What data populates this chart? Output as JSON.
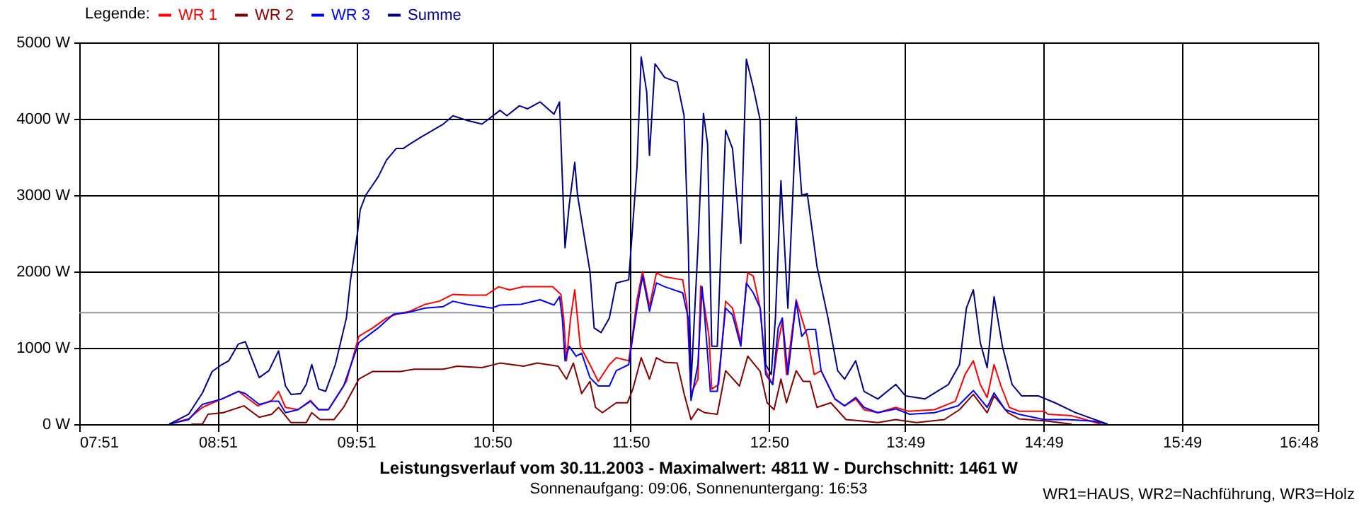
{
  "chart_data": {
    "type": "line",
    "title": "Leistungsverlauf vom 30.11.2003 - Maximalwert: 4811 W - Durchschnitt: 1461 W",
    "subtitle": "Sonnenaufgang: 09:06, Sonnenuntergang: 16:53",
    "annotations": [
      "WR1=HAUS, WR2=Nachführung, WR3=Holz"
    ],
    "legend_title": "Legende:",
    "legend": "top left",
    "grid": true,
    "xlim": [
      7.85,
      16.8
    ],
    "xticks": [
      {
        "value": 7.85,
        "label": "07:51"
      },
      {
        "value": 8.85,
        "label": "08:51"
      },
      {
        "value": 9.85,
        "label": "09:51"
      },
      {
        "value": 10.8333,
        "label": "10:50"
      },
      {
        "value": 11.8333,
        "label": "11:50"
      },
      {
        "value": 12.8333,
        "label": "12:50"
      },
      {
        "value": 13.8167,
        "label": "13:49"
      },
      {
        "value": 14.8167,
        "label": "14:49"
      },
      {
        "value": 15.8167,
        "label": "15:49"
      },
      {
        "value": 16.8,
        "label": "16:48"
      }
    ],
    "ylim": [
      0,
      5000
    ],
    "yticks": [
      {
        "value": 0,
        "label": "0 W"
      },
      {
        "value": 1000,
        "label": "1000 W"
      },
      {
        "value": 2000,
        "label": "2000 W"
      },
      {
        "value": 3000,
        "label": "3000 W"
      },
      {
        "value": 4000,
        "label": "4000 W"
      },
      {
        "value": 5000,
        "label": "5000 W"
      }
    ],
    "ref_lines": [
      {
        "axis": "y",
        "value": 1461,
        "color": "#999999"
      }
    ],
    "series": [
      {
        "name": "WR 1",
        "color": "#ff0000",
        "x": [
          8.5,
          8.64,
          8.74,
          8.88,
          9.0,
          9.14,
          9.24,
          9.29,
          9.34,
          9.43,
          9.52,
          9.58,
          9.65,
          9.78,
          9.87,
          9.97,
          10.07,
          10.14,
          10.24,
          10.35,
          10.45,
          10.55,
          10.67,
          10.79,
          10.88,
          10.96,
          11.06,
          11.27,
          11.33,
          11.35,
          11.37,
          11.4,
          11.43,
          11.47,
          11.54,
          11.6,
          11.68,
          11.73,
          11.82,
          11.85,
          11.88,
          11.92,
          11.97,
          12.02,
          12.08,
          12.21,
          12.24,
          12.27,
          12.32,
          12.34,
          12.36,
          12.4,
          12.42,
          12.47,
          12.52,
          12.57,
          12.63,
          12.68,
          12.72,
          12.77,
          12.81,
          12.86,
          12.9,
          12.93,
          12.96,
          13.03,
          13.08,
          13.11,
          13.16,
          13.21,
          13.31,
          13.38,
          13.46,
          13.52,
          13.62,
          13.75,
          13.84,
          14.03,
          14.18,
          14.25,
          14.31,
          14.36,
          14.41,
          14.46,
          14.51,
          14.57,
          14.64,
          14.82,
          14.85,
          15.02,
          15.12,
          15.23
        ],
        "values": [
          0,
          70,
          220,
          330,
          430,
          240,
          310,
          430,
          220,
          190,
          310,
          190,
          190,
          560,
          1150,
          1260,
          1390,
          1440,
          1480,
          1570,
          1610,
          1700,
          1690,
          1690,
          1800,
          1760,
          1800,
          1800,
          1700,
          1390,
          830,
          1390,
          1760,
          1020,
          780,
          560,
          780,
          870,
          830,
          1200,
          1630,
          2000,
          1540,
          1980,
          1930,
          1890,
          1570,
          400,
          590,
          1810,
          1630,
          1150,
          460,
          520,
          1610,
          1520,
          1070,
          1980,
          1940,
          1520,
          700,
          520,
          1070,
          1350,
          650,
          1630,
          1330,
          1150,
          650,
          700,
          330,
          240,
          330,
          190,
          150,
          220,
          170,
          190,
          300,
          650,
          830,
          520,
          350,
          780,
          500,
          220,
          170,
          170,
          130,
          110,
          60,
          0
        ]
      },
      {
        "name": "WR 2",
        "color": "#800000",
        "x": [
          8.66,
          8.74,
          8.78,
          8.89,
          9.04,
          9.15,
          9.24,
          9.29,
          9.38,
          9.49,
          9.53,
          9.59,
          9.69,
          9.76,
          9.87,
          9.97,
          10.17,
          10.27,
          10.48,
          10.58,
          10.76,
          10.89,
          11.06,
          11.16,
          11.31,
          11.37,
          11.42,
          11.48,
          11.54,
          11.58,
          11.63,
          11.73,
          11.81,
          11.85,
          11.91,
          11.97,
          12.02,
          12.08,
          12.17,
          12.22,
          12.27,
          12.32,
          12.37,
          12.46,
          12.52,
          12.62,
          12.68,
          12.77,
          12.82,
          12.87,
          12.92,
          12.96,
          13.03,
          13.08,
          13.13,
          13.18,
          13.28,
          13.39,
          13.52,
          13.62,
          13.75,
          13.9,
          14.1,
          14.21,
          14.31,
          14.41,
          14.46,
          14.56,
          14.64,
          14.85,
          15.02
        ],
        "values": [
          0,
          0,
          130,
          150,
          240,
          90,
          130,
          220,
          20,
          20,
          150,
          60,
          60,
          220,
          590,
          690,
          690,
          720,
          720,
          760,
          740,
          800,
          760,
          800,
          760,
          590,
          800,
          400,
          560,
          220,
          150,
          280,
          280,
          460,
          870,
          590,
          870,
          810,
          800,
          400,
          60,
          200,
          150,
          130,
          700,
          500,
          890,
          690,
          280,
          190,
          590,
          280,
          700,
          560,
          560,
          220,
          280,
          60,
          40,
          20,
          60,
          20,
          60,
          190,
          390,
          150,
          370,
          150,
          70,
          40,
          0
        ]
      },
      {
        "name": "WR 3",
        "color": "#0000ff",
        "x": [
          8.5,
          8.64,
          8.74,
          8.88,
          9.0,
          9.05,
          9.15,
          9.24,
          9.29,
          9.34,
          9.43,
          9.52,
          9.58,
          9.65,
          9.76,
          9.87,
          10.01,
          10.12,
          10.22,
          10.35,
          10.48,
          10.55,
          10.65,
          10.83,
          10.89,
          11.04,
          11.18,
          11.28,
          11.32,
          11.34,
          11.36,
          11.39,
          11.44,
          11.48,
          11.54,
          11.6,
          11.68,
          11.73,
          11.82,
          11.88,
          11.92,
          11.97,
          12.02,
          12.08,
          12.21,
          12.25,
          12.27,
          12.32,
          12.35,
          12.37,
          12.41,
          12.46,
          12.52,
          12.57,
          12.63,
          12.67,
          12.72,
          12.77,
          12.81,
          12.86,
          12.9,
          12.93,
          12.97,
          13.03,
          13.07,
          13.11,
          13.17,
          13.21,
          13.31,
          13.38,
          13.46,
          13.52,
          13.62,
          13.75,
          13.85,
          14.03,
          14.2,
          14.31,
          14.41,
          14.46,
          14.54,
          14.64,
          14.82,
          14.98,
          15.18,
          15.28
        ],
        "values": [
          0,
          60,
          260,
          330,
          430,
          400,
          260,
          300,
          300,
          150,
          190,
          300,
          190,
          190,
          500,
          1070,
          1260,
          1440,
          1460,
          1520,
          1540,
          1610,
          1570,
          1520,
          1560,
          1570,
          1630,
          1560,
          1670,
          1390,
          830,
          1020,
          890,
          930,
          610,
          500,
          500,
          700,
          780,
          1520,
          1940,
          1480,
          1850,
          1800,
          1720,
          1390,
          310,
          780,
          1800,
          1390,
          430,
          430,
          1520,
          1430,
          1020,
          1850,
          1720,
          1520,
          650,
          520,
          1260,
          1390,
          650,
          1610,
          1150,
          1240,
          1240,
          700,
          330,
          240,
          350,
          220,
          150,
          200,
          130,
          150,
          240,
          440,
          220,
          410,
          190,
          130,
          60,
          60,
          40,
          0
        ]
      },
      {
        "name": "Summe",
        "color": "#000080",
        "x": [
          8.5,
          8.64,
          8.74,
          8.81,
          8.88,
          8.93,
          9.0,
          9.05,
          9.09,
          9.15,
          9.22,
          9.29,
          9.34,
          9.38,
          9.45,
          9.49,
          9.53,
          9.58,
          9.63,
          9.7,
          9.78,
          9.81,
          9.86,
          9.88,
          9.92,
          10.01,
          10.07,
          10.14,
          10.19,
          10.24,
          10.32,
          10.48,
          10.55,
          10.65,
          10.76,
          10.89,
          10.94,
          11.03,
          11.09,
          11.18,
          11.28,
          11.32,
          11.34,
          11.36,
          11.39,
          11.43,
          11.45,
          11.54,
          11.57,
          11.62,
          11.68,
          11.73,
          11.82,
          11.85,
          11.88,
          11.91,
          11.95,
          11.97,
          12.01,
          12.08,
          12.17,
          12.22,
          12.25,
          12.27,
          12.32,
          12.36,
          12.39,
          12.42,
          12.46,
          12.52,
          12.57,
          12.63,
          12.67,
          12.72,
          12.77,
          12.81,
          12.85,
          12.88,
          12.92,
          12.97,
          13.03,
          13.07,
          13.11,
          13.18,
          13.26,
          13.33,
          13.38,
          13.46,
          13.52,
          13.62,
          13.75,
          13.82,
          13.96,
          14.13,
          14.21,
          14.26,
          14.31,
          14.36,
          14.41,
          14.46,
          14.52,
          14.59,
          14.66,
          14.78,
          14.9,
          15.05,
          15.28
        ],
        "values": [
          0,
          130,
          410,
          690,
          780,
          830,
          1050,
          1080,
          890,
          610,
          700,
          960,
          500,
          390,
          400,
          520,
          780,
          460,
          430,
          780,
          1390,
          1890,
          2500,
          2810,
          3000,
          3240,
          3460,
          3610,
          3610,
          3670,
          3760,
          3930,
          4040,
          3980,
          3930,
          4110,
          4040,
          4170,
          4130,
          4220,
          4060,
          4220,
          3240,
          2310,
          2870,
          3430,
          3000,
          2000,
          1260,
          1200,
          1390,
          1850,
          1890,
          2630,
          3370,
          4810,
          4350,
          3520,
          4720,
          4540,
          4480,
          4040,
          2370,
          520,
          2310,
          4070,
          3670,
          1020,
          1020,
          3850,
          3610,
          2370,
          4780,
          4410,
          3980,
          780,
          650,
          1390,
          3190,
          1520,
          4020,
          3000,
          3020,
          2070,
          1390,
          700,
          590,
          830,
          430,
          330,
          520,
          370,
          330,
          520,
          780,
          1520,
          1760,
          1070,
          740,
          1670,
          1020,
          520,
          370,
          370,
          280,
          150,
          0
        ]
      }
    ]
  }
}
